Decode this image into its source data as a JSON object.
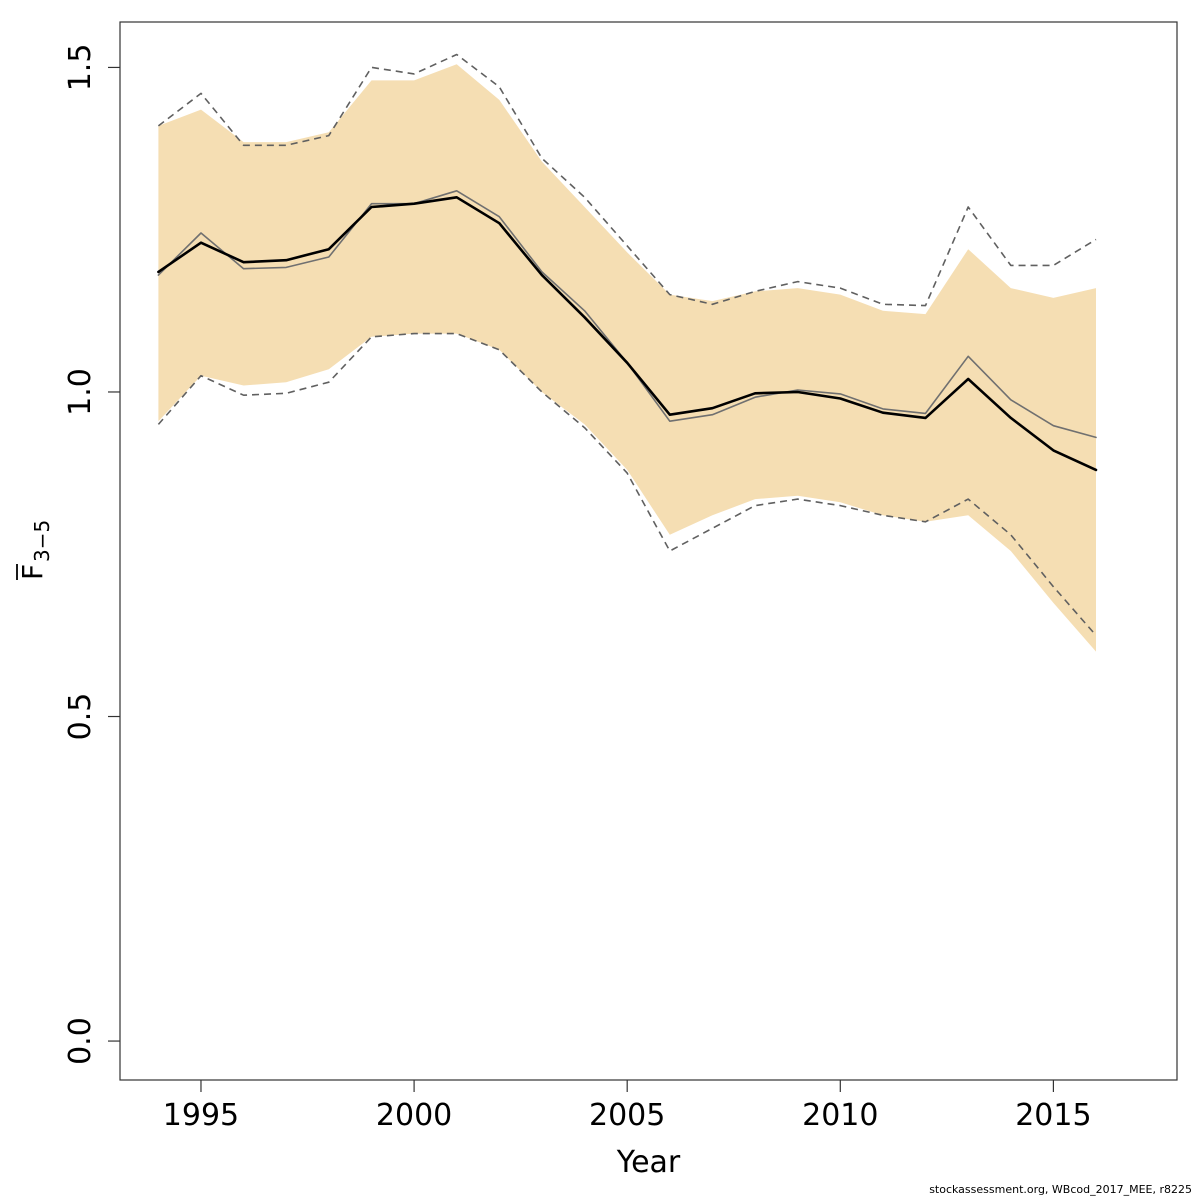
{
  "chart_data": {
    "type": "line",
    "title": "",
    "xlabel": "Year",
    "ylabel_main": "F",
    "ylabel_sub": "3−5",
    "x_ticks": [
      1995,
      2000,
      2005,
      2010,
      2015
    ],
    "y_ticks": [
      "0.0",
      "0.5",
      "1.0",
      "1.5"
    ],
    "y_tick_values": [
      0.0,
      0.5,
      1.0,
      1.5
    ],
    "xlim": [
      1993.1,
      2017.9
    ],
    "ylim": [
      -0.06,
      1.57
    ],
    "grid": false,
    "x": [
      1994,
      1995,
      1996,
      1997,
      1998,
      1999,
      2000,
      2001,
      2002,
      2003,
      2004,
      2005,
      2006,
      2007,
      2008,
      2009,
      2010,
      2011,
      2012,
      2013,
      2014,
      2015,
      2016
    ],
    "band": {
      "color": "#F5DEB3",
      "upper": [
        1.41,
        1.435,
        1.385,
        1.385,
        1.4,
        1.48,
        1.48,
        1.505,
        1.45,
        1.355,
        1.285,
        1.215,
        1.15,
        1.14,
        1.155,
        1.16,
        1.15,
        1.125,
        1.12,
        1.22,
        1.16,
        1.145,
        1.16
      ],
      "lower": [
        0.955,
        1.025,
        1.01,
        1.015,
        1.035,
        1.085,
        1.09,
        1.09,
        1.065,
        1.0,
        0.95,
        0.88,
        0.78,
        0.81,
        0.835,
        0.84,
        0.83,
        0.81,
        0.8,
        0.81,
        0.755,
        0.675,
        0.6
      ]
    },
    "series": [
      {
        "style": "solid-thick",
        "color": "#000000",
        "values": [
          1.185,
          1.23,
          1.2,
          1.203,
          1.22,
          1.285,
          1.29,
          1.3,
          1.26,
          1.18,
          1.115,
          1.045,
          0.965,
          0.975,
          0.998,
          1.0,
          0.99,
          0.968,
          0.96,
          1.02,
          0.96,
          0.91,
          0.88
        ]
      },
      {
        "style": "solid-thin",
        "color": "#707070",
        "values": [
          1.18,
          1.245,
          1.19,
          1.192,
          1.208,
          1.29,
          1.29,
          1.31,
          1.27,
          1.185,
          1.125,
          1.045,
          0.955,
          0.965,
          0.992,
          1.003,
          0.997,
          0.974,
          0.967,
          1.055,
          0.988,
          0.948,
          0.93
        ]
      },
      {
        "style": "dashed",
        "color": "#606060",
        "values": [
          1.41,
          1.46,
          1.38,
          1.38,
          1.395,
          1.5,
          1.49,
          1.52,
          1.47,
          1.36,
          1.3,
          1.225,
          1.15,
          1.135,
          1.155,
          1.17,
          1.16,
          1.135,
          1.133,
          1.285,
          1.195,
          1.195,
          1.235
        ]
      },
      {
        "style": "dashed",
        "color": "#606060",
        "values": [
          0.95,
          1.025,
          0.995,
          0.998,
          1.015,
          1.085,
          1.09,
          1.09,
          1.065,
          1.0,
          0.945,
          0.875,
          0.755,
          0.79,
          0.825,
          0.835,
          0.825,
          0.81,
          0.8,
          0.835,
          0.78,
          0.7,
          0.625
        ]
      }
    ]
  },
  "footnote": "stockassessment.org, WBcod_2017_MEE, r8225"
}
